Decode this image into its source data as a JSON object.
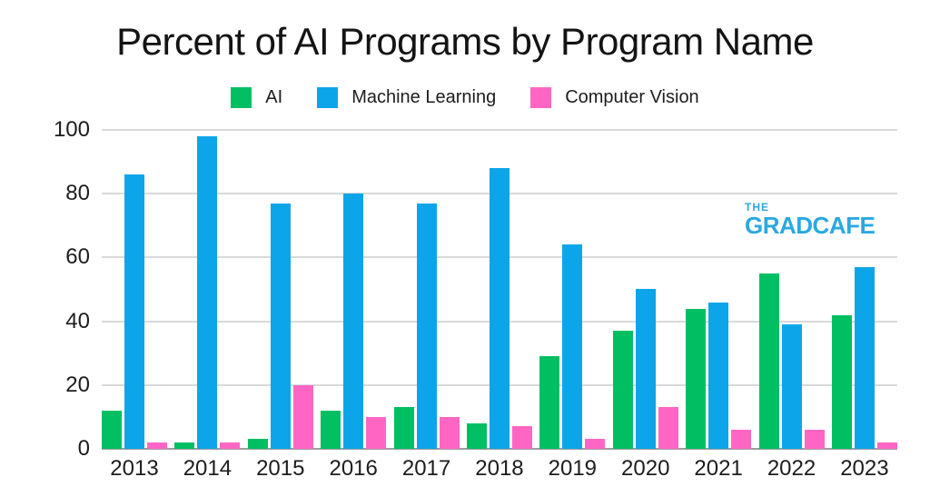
{
  "chart_data": {
    "type": "bar",
    "title": "Percent of AI Programs by Program Name",
    "categories": [
      "2013",
      "2014",
      "2015",
      "2016",
      "2017",
      "2018",
      "2019",
      "2020",
      "2021",
      "2022",
      "2023"
    ],
    "series": [
      {
        "name": "AI",
        "color": "#00bf63",
        "values": [
          12,
          2,
          3,
          12,
          13,
          8,
          29,
          37,
          44,
          55,
          42
        ]
      },
      {
        "name": "Machine Learning",
        "color": "#0da5e9",
        "values": [
          86,
          98,
          77,
          80,
          77,
          88,
          64,
          50,
          46,
          39,
          57
        ]
      },
      {
        "name": "Computer Vision",
        "color": "#ff66c4",
        "values": [
          2,
          2,
          20,
          10,
          10,
          7,
          3,
          13,
          6,
          6,
          2
        ]
      }
    ],
    "xlabel": "",
    "ylabel": "",
    "ylim": [
      0,
      100
    ],
    "yticks": [
      0,
      20,
      40,
      60,
      80,
      100
    ],
    "grid": true,
    "legend_position": "top",
    "grid_color": "#d9d9d9",
    "axis_color": "#9e9e9e",
    "text_color": "#1d1d1d",
    "background_color": "#ffffff"
  },
  "logo": {
    "the": "THE",
    "gradcafe": "GRADCAFE",
    "color": "#29a9e1"
  }
}
